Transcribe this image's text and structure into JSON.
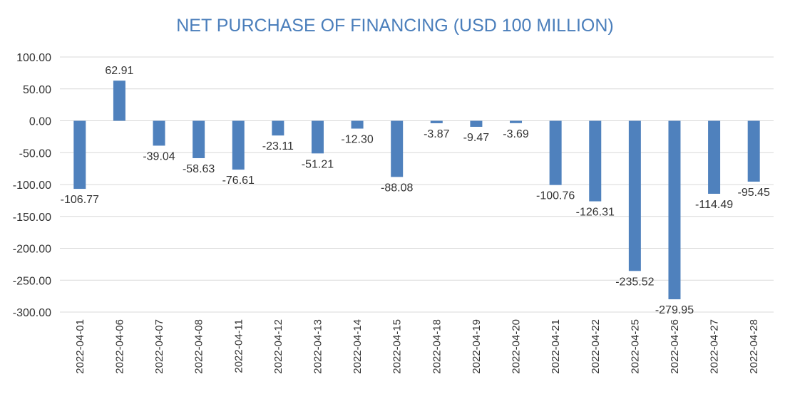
{
  "chart_data": {
    "type": "bar",
    "title": "NET PURCHASE OF FINANCING (USD 100 MILLION)",
    "xlabel": "",
    "ylabel": "",
    "ylim": [
      -300,
      100
    ],
    "yticks": [
      100,
      50,
      0,
      -50,
      -100,
      -150,
      -200,
      -250,
      -300
    ],
    "ytick_labels": [
      "100.00",
      "50.00",
      "0.00",
      "-50.00",
      "-100.00",
      "-150.00",
      "-200.00",
      "-250.00",
      "-300.00"
    ],
    "categories": [
      "2022-04-01",
      "2022-04-06",
      "2022-04-07",
      "2022-04-08",
      "2022-04-11",
      "2022-04-12",
      "2022-04-13",
      "2022-04-14",
      "2022-04-15",
      "2022-04-18",
      "2022-04-19",
      "2022-04-20",
      "2022-04-21",
      "2022-04-22",
      "2022-04-25",
      "2022-04-26",
      "2022-04-27",
      "2022-04-28"
    ],
    "values": [
      -106.77,
      62.91,
      -39.04,
      -58.63,
      -76.61,
      -23.11,
      -51.21,
      -12.3,
      -88.08,
      -3.87,
      -9.47,
      -3.69,
      -100.76,
      -126.31,
      -235.52,
      -279.95,
      -114.49,
      -95.45
    ],
    "value_labels": [
      "-106.77",
      "62.91",
      "-39.04",
      "-58.63",
      "-76.61",
      "-23.11",
      "-51.21",
      "-12.30",
      "-88.08",
      "-3.87",
      "-9.47",
      "-3.69",
      "-100.76",
      "-126.31",
      "-235.52",
      "-279.95",
      "-114.49",
      "-95.45"
    ],
    "grid": true,
    "legend": "none",
    "colors": {
      "bar": "#4f81bd",
      "title": "#4a7ebb",
      "grid": "#d9d9d9"
    }
  }
}
